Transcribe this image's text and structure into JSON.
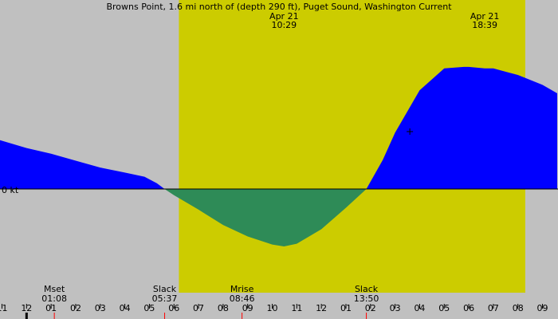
{
  "chart_data": {
    "type": "area",
    "title": "Browns Point, 1.6 mi north of (depth 290 ft), Puget Sound, Washington Current",
    "zero_label": "0 kt",
    "x_unit": "hour",
    "x_range": [
      23.0,
      33.7
    ],
    "y_range": [
      -1.55,
      3.6
    ],
    "colors": {
      "background": "#c0c0c0",
      "daylight": "#cccc00",
      "flood": "#0000ff",
      "ebb": "#2e8b57",
      "tick_major": "#000000",
      "tick_event": "#ff0000"
    },
    "daylight": {
      "start": 6.2,
      "end": 20.3
    },
    "header_labels": [
      {
        "date": "Apr 21",
        "time": "10:29",
        "x": 10.48
      },
      {
        "date": "Apr 21",
        "time": "18:39",
        "x": 18.65
      }
    ],
    "events": [
      {
        "name": "Mset",
        "time": "01:08",
        "x": 1.13
      },
      {
        "name": "Slack",
        "time": "05:37",
        "x": 5.62
      },
      {
        "name": "Mrise",
        "time": "08:46",
        "x": 8.77
      },
      {
        "name": "Slack",
        "time": "13:50",
        "x": 13.83
      }
    ],
    "x_ticks": [
      {
        "label": "11",
        "x": -1
      },
      {
        "label": "12",
        "x": 0
      },
      {
        "label": "01",
        "x": 1
      },
      {
        "label": "02",
        "x": 2
      },
      {
        "label": "03",
        "x": 3
      },
      {
        "label": "04",
        "x": 4
      },
      {
        "label": "05",
        "x": 5
      },
      {
        "label": "06",
        "x": 6
      },
      {
        "label": "07",
        "x": 7
      },
      {
        "label": "08",
        "x": 8
      },
      {
        "label": "09",
        "x": 9
      },
      {
        "label": "10",
        "x": 10
      },
      {
        "label": "11",
        "x": 11
      },
      {
        "label": "12",
        "x": 12
      },
      {
        "label": "01",
        "x": 13
      },
      {
        "label": "02",
        "x": 14
      },
      {
        "label": "03",
        "x": 15
      },
      {
        "label": "04",
        "x": 16
      },
      {
        "label": "05",
        "x": 17
      },
      {
        "label": "06",
        "x": 18
      },
      {
        "label": "07",
        "x": 19
      },
      {
        "label": "08",
        "x": 20
      },
      {
        "label": "09",
        "x": 21
      }
    ],
    "series": [
      {
        "x": [
          -1.2,
          0.0,
          1.0,
          2.0,
          3.0,
          4.0,
          4.8,
          5.3,
          5.62,
          6.0,
          7.0,
          8.0,
          9.0,
          10.0,
          10.48,
          11.0,
          12.0,
          13.0,
          13.83,
          14.5,
          15.0,
          16.0,
          17.0,
          17.8,
          18.0,
          18.65,
          19.0,
          20.0,
          21.0,
          21.6
        ],
        "y": [
          1.3,
          1.07,
          0.92,
          0.74,
          0.56,
          0.43,
          0.32,
          0.15,
          0.0,
          -0.16,
          -0.54,
          -0.94,
          -1.24,
          -1.45,
          -1.5,
          -1.43,
          -1.05,
          -0.49,
          0.0,
          0.76,
          1.47,
          2.58,
          3.15,
          3.19,
          3.19,
          3.15,
          3.15,
          2.98,
          2.72,
          2.5
        ]
      }
    ],
    "marker": {
      "x": 15.6,
      "y": 1.5
    }
  }
}
